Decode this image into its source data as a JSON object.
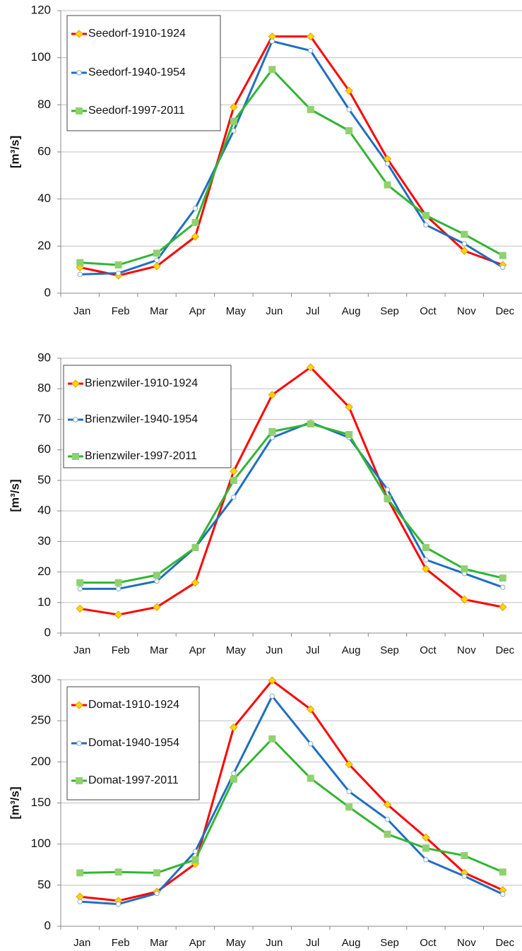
{
  "chart_data": [
    {
      "type": "line",
      "y_label": "[m³/s]",
      "categories": [
        "Jan",
        "Feb",
        "Mar",
        "Apr",
        "May",
        "Jun",
        "Jul",
        "Aug",
        "Sep",
        "Oct",
        "Nov",
        "Dec"
      ],
      "ylim": [
        0,
        120
      ],
      "yticks": [
        0,
        20,
        40,
        60,
        80,
        100,
        120
      ],
      "grid": true,
      "series": [
        {
          "name": "Seedorf-1910-1924",
          "color": "#ff0000",
          "marker": "diamond",
          "values": [
            11,
            7.5,
            11.5,
            24,
            79,
            109,
            109,
            86,
            57,
            33,
            18,
            12
          ]
        },
        {
          "name": "Seedorf-1940-1954",
          "color": "#1f6fc0",
          "marker": "circle",
          "values": [
            8,
            8.5,
            14,
            36,
            69,
            107,
            103,
            78,
            55,
            29,
            21,
            11
          ]
        },
        {
          "name": "Seedorf-1997-2011",
          "color": "#33b533",
          "marker": "square",
          "values": [
            13,
            12,
            17,
            30,
            73,
            95,
            78,
            69,
            46,
            33,
            25,
            16
          ]
        }
      ]
    },
    {
      "type": "line",
      "y_label": "[m³/s]",
      "categories": [
        "Jan",
        "Feb",
        "Mar",
        "Apr",
        "May",
        "Jun",
        "Jul",
        "Aug",
        "Sep",
        "Oct",
        "Nov",
        "Dec"
      ],
      "ylim": [
        0,
        90
      ],
      "yticks": [
        0,
        10,
        20,
        30,
        40,
        50,
        60,
        70,
        80,
        90
      ],
      "grid": true,
      "series": [
        {
          "name": "Brienzwiler-1910-1924",
          "color": "#ff0000",
          "marker": "diamond",
          "values": [
            8,
            6,
            8.5,
            16.5,
            53,
            78,
            87,
            74,
            44,
            21,
            11,
            8.5
          ]
        },
        {
          "name": "Brienzwiler-1940-1954",
          "color": "#1f6fc0",
          "marker": "circle",
          "values": [
            14.5,
            14.5,
            17,
            28,
            44.5,
            64,
            69,
            64,
            47,
            24,
            19.5,
            15
          ]
        },
        {
          "name": "Brienzwiler-1997-2011",
          "color": "#33b533",
          "marker": "square",
          "values": [
            16.5,
            16.5,
            19,
            28,
            50,
            66,
            68.5,
            65,
            44,
            28,
            21,
            18
          ]
        }
      ]
    },
    {
      "type": "line",
      "y_label": "[m³/s]",
      "categories": [
        "Jan",
        "Feb",
        "Mar",
        "Apr",
        "May",
        "Jun",
        "Jul",
        "Aug",
        "Sep",
        "Oct",
        "Nov",
        "Dec"
      ],
      "ylim": [
        0,
        300
      ],
      "yticks": [
        0,
        50,
        100,
        150,
        200,
        250,
        300
      ],
      "grid": true,
      "series": [
        {
          "name": "Domat-1910-1924",
          "color": "#ff0000",
          "marker": "diamond",
          "values": [
            36,
            31,
            42,
            76,
            242,
            299,
            264,
            197,
            148,
            108,
            65,
            44
          ]
        },
        {
          "name": "Domat-1940-1954",
          "color": "#1f6fc0",
          "marker": "circle",
          "values": [
            30,
            27,
            40,
            91,
            186,
            280,
            222,
            164,
            130,
            81,
            61,
            39
          ]
        },
        {
          "name": "Domat-1997-2011",
          "color": "#33b533",
          "marker": "square",
          "values": [
            65,
            66,
            65,
            81,
            179,
            228,
            180,
            145,
            112,
            95,
            86,
            66
          ]
        }
      ]
    }
  ]
}
